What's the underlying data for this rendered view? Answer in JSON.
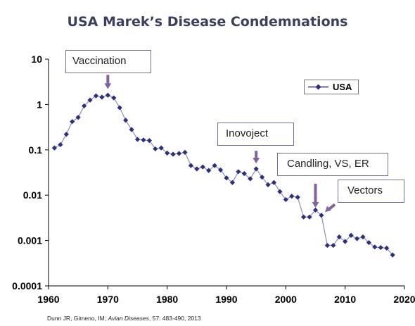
{
  "chart_data": {
    "type": "line",
    "title": "USA Marek’s Disease Condemnations",
    "xlabel": "",
    "ylabel": "",
    "xlim": [
      1960,
      2020
    ],
    "ylim": [
      0.0001,
      10
    ],
    "y_scale": "log",
    "x_ticks": [
      "1960",
      "1970",
      "1980",
      "1990",
      "2000",
      "2010",
      "2020"
    ],
    "y_ticks": [
      "0.0001",
      "0.001",
      "0.01",
      "0.1",
      "1",
      "10"
    ],
    "grid": false,
    "legend": {
      "position": "top-right",
      "entries": [
        "USA"
      ]
    },
    "series": [
      {
        "name": "USA",
        "color": "#2e2f7a",
        "marker": "diamond",
        "x": [
          1961,
          1962,
          1963,
          1964,
          1965,
          1966,
          1967,
          1968,
          1969,
          1970,
          1971,
          1972,
          1973,
          1974,
          1975,
          1976,
          1977,
          1978,
          1979,
          1980,
          1981,
          1982,
          1983,
          1984,
          1985,
          1986,
          1987,
          1988,
          1989,
          1990,
          1991,
          1992,
          1993,
          1994,
          1995,
          1996,
          1997,
          1998,
          1999,
          2000,
          2001,
          2002,
          2003,
          2004,
          2005,
          2006,
          2007,
          2008,
          2009,
          2010,
          2011,
          2012,
          2013,
          2014,
          2015,
          2016,
          2017,
          2018
        ],
        "y": [
          0.11,
          0.13,
          0.22,
          0.42,
          0.52,
          0.93,
          1.25,
          1.55,
          1.45,
          1.6,
          1.4,
          0.85,
          0.45,
          0.28,
          0.17,
          0.165,
          0.16,
          0.105,
          0.11,
          0.085,
          0.08,
          0.083,
          0.088,
          0.045,
          0.038,
          0.042,
          0.035,
          0.045,
          0.036,
          0.024,
          0.019,
          0.033,
          0.03,
          0.023,
          0.038,
          0.025,
          0.017,
          0.019,
          0.012,
          0.008,
          0.0095,
          0.009,
          0.0033,
          0.0033,
          0.0047,
          0.0036,
          0.00078,
          0.00078,
          0.0012,
          0.00095,
          0.0013,
          0.0011,
          0.0012,
          0.0009,
          0.00072,
          0.0007,
          0.00068,
          0.00048
        ]
      }
    ],
    "annotations": [
      {
        "text": "Vaccination",
        "x": 1970,
        "y": 2.2,
        "arrow": "down",
        "arrow_color": "#8064a2"
      },
      {
        "text": "Inovoject",
        "x": 1995,
        "y": 0.05,
        "arrow": "down",
        "arrow_color": "#8064a2"
      },
      {
        "text": "Candling, VS, ER",
        "x": 2005,
        "y": 0.0053,
        "arrow": "down",
        "arrow_color": "#8064a2"
      },
      {
        "text": "Vectors",
        "x": 2006.6,
        "y": 0.0042,
        "arrow": "diagonal",
        "arrow_color": "#8064a2"
      }
    ]
  },
  "citation": {
    "pre": "Dunn JR, Gimeno, IM; ",
    "journal": "Avian Diseases",
    "post": ", 57: 483-490, 2013"
  }
}
